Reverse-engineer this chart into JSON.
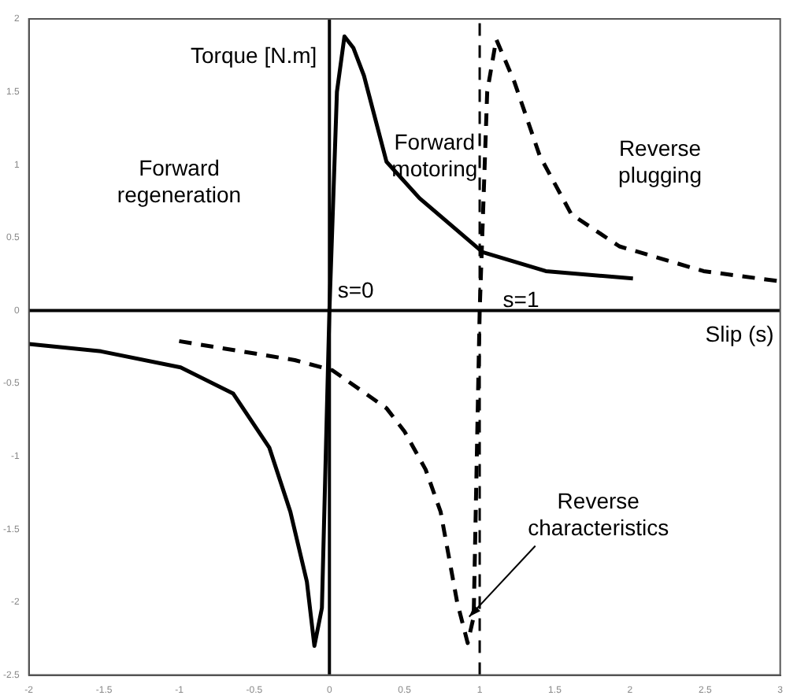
{
  "chart_data": {
    "type": "line",
    "xlabel": "Slip (s)",
    "ylabel": "Torque [N.m]",
    "xlim": [
      -2,
      3
    ],
    "xticks": [
      -2,
      -1.5,
      -1,
      -0.5,
      0,
      0.5,
      1,
      1.5,
      2,
      2.5,
      3
    ],
    "ylim": [
      -2.5,
      2
    ],
    "yticks": [
      -2.5,
      -2,
      -1.5,
      -1,
      -0.5,
      0,
      0.5,
      1,
      1.5,
      2
    ],
    "grid": false,
    "legend": false,
    "marker": "none",
    "series": [
      {
        "color": "#000000",
        "line_style": "solid",
        "x": [
          -2,
          -1.52,
          -0.99,
          -0.64,
          -0.4,
          -0.26,
          -0.15,
          -0.1,
          -0.05,
          0,
          0.05,
          0.1,
          0.16,
          0.23,
          0.38,
          0.6,
          1.02,
          1.44,
          2.02
        ],
        "values": [
          -0.23,
          -0.28,
          -0.39,
          -0.57,
          -0.94,
          -1.38,
          -1.86,
          -2.3,
          -2.04,
          0,
          1.5,
          1.88,
          1.8,
          1.61,
          1.02,
          0.77,
          0.4,
          0.27,
          0.22
        ]
      },
      {
        "color": "#000000",
        "line_style": "dashed",
        "x": [
          -1,
          -0.23,
          0.02,
          0.38,
          0.5,
          0.64,
          0.74,
          0.85,
          0.92,
          0.96,
          1,
          1.05,
          1.11,
          1.23,
          1.4,
          1.61,
          1.93,
          2.49,
          3
        ],
        "values": [
          -0.21,
          -0.34,
          -0.41,
          -0.67,
          -0.83,
          -1.09,
          -1.38,
          -2,
          -2.28,
          -2.1,
          0,
          1.5,
          1.86,
          1.57,
          1.06,
          0.66,
          0.44,
          0.27,
          0.2
        ]
      }
    ],
    "ref_lines": [
      {
        "axis": "y",
        "value": 0,
        "color": "#000000",
        "line_style": "solid"
      },
      {
        "axis": "x",
        "value": 0,
        "color": "#000000",
        "line_style": "solid"
      },
      {
        "axis": "x",
        "value": 1,
        "color": "#000000",
        "line_style": "dashed"
      }
    ],
    "annotations": [
      "Forward regeneration",
      "Forward motoring",
      "Reverse plugging",
      "s=0",
      "s=1",
      {
        "text": "Reverse characteristics",
        "x": 0.93,
        "y": -2.1
      }
    ]
  }
}
